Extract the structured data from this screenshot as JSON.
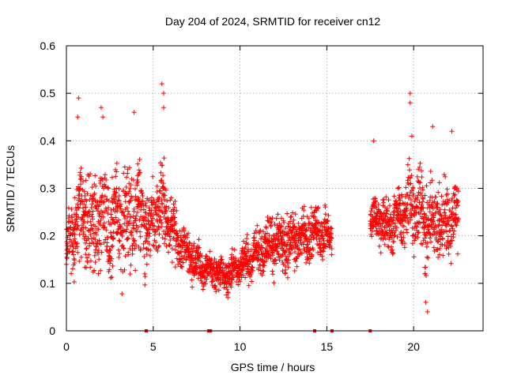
{
  "chart_data": {
    "type": "scatter",
    "title": "Day 204 of 2024, SRMTID for receiver cn12",
    "xlabel": "GPS time / hours",
    "ylabel": "SRMTID / TECUs",
    "xlim": [
      0,
      24
    ],
    "ylim": [
      0,
      0.6
    ],
    "xticks": [
      0,
      5,
      10,
      15,
      20
    ],
    "xtick_labels": [
      "0",
      "5",
      "10",
      "15",
      "20"
    ],
    "yticks": [
      0,
      0.1,
      0.2,
      0.3,
      0.4,
      0.5,
      0.6
    ],
    "ytick_labels": [
      "0",
      "0.1",
      "0.2",
      "0.3",
      "0.4",
      "0.5",
      "0.6"
    ],
    "grid": true,
    "marker": "plus",
    "series_color": "#ff0000",
    "zero_markers_x": [
      4.6,
      8.2,
      8.3,
      14.3,
      15.3,
      17.5
    ],
    "envelope": {
      "x": [
        0.0,
        0.5,
        1.0,
        1.5,
        2.0,
        2.5,
        3.0,
        3.5,
        4.0,
        4.5,
        5.0,
        5.5,
        6.0,
        6.5,
        7.0,
        7.5,
        8.0,
        8.5,
        9.0,
        9.5,
        10.0,
        10.5,
        11.0,
        11.5,
        12.0,
        12.5,
        13.0,
        13.5,
        14.0,
        14.5,
        15.0,
        15.3,
        17.5,
        18.0,
        18.5,
        19.0,
        19.5,
        20.0,
        20.5,
        21.0,
        21.5,
        22.0,
        22.5
      ],
      "center": [
        0.17,
        0.22,
        0.25,
        0.22,
        0.24,
        0.21,
        0.24,
        0.23,
        0.26,
        0.22,
        0.22,
        0.27,
        0.22,
        0.18,
        0.17,
        0.14,
        0.13,
        0.13,
        0.12,
        0.12,
        0.14,
        0.15,
        0.16,
        0.18,
        0.19,
        0.18,
        0.19,
        0.2,
        0.2,
        0.21,
        0.2,
        0.2,
        0.23,
        0.24,
        0.22,
        0.23,
        0.25,
        0.27,
        0.25,
        0.22,
        0.23,
        0.24,
        0.24
      ],
      "spread": [
        0.04,
        0.08,
        0.1,
        0.1,
        0.09,
        0.09,
        0.09,
        0.09,
        0.09,
        0.07,
        0.06,
        0.08,
        0.06,
        0.04,
        0.04,
        0.04,
        0.03,
        0.03,
        0.03,
        0.03,
        0.03,
        0.04,
        0.04,
        0.04,
        0.05,
        0.05,
        0.05,
        0.05,
        0.05,
        0.04,
        0.04,
        0.03,
        0.04,
        0.05,
        0.05,
        0.05,
        0.06,
        0.07,
        0.08,
        0.08,
        0.07,
        0.07,
        0.06
      ]
    },
    "spikes": [
      {
        "x": 0.7,
        "y": 0.49
      },
      {
        "x": 0.65,
        "y": 0.45
      },
      {
        "x": 2.0,
        "y": 0.47
      },
      {
        "x": 2.1,
        "y": 0.45
      },
      {
        "x": 3.9,
        "y": 0.46
      },
      {
        "x": 5.5,
        "y": 0.52
      },
      {
        "x": 5.6,
        "y": 0.5
      },
      {
        "x": 5.6,
        "y": 0.47
      },
      {
        "x": 19.8,
        "y": 0.5
      },
      {
        "x": 19.8,
        "y": 0.48
      },
      {
        "x": 19.9,
        "y": 0.41
      },
      {
        "x": 21.1,
        "y": 0.43
      },
      {
        "x": 20.8,
        "y": 0.04
      },
      {
        "x": 20.7,
        "y": 0.06
      },
      {
        "x": 22.2,
        "y": 0.42
      },
      {
        "x": 17.7,
        "y": 0.4
      },
      {
        "x": 9.3,
        "y": 0.07
      }
    ]
  }
}
